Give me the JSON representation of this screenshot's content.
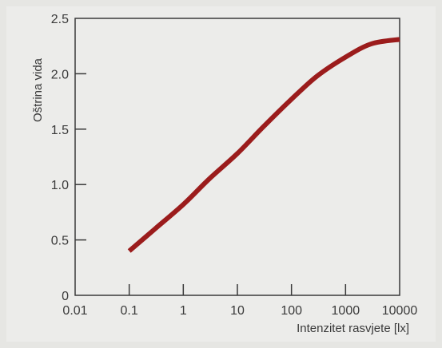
{
  "chart_data": {
    "type": "line",
    "title": "",
    "xlabel": "Intenzitet rasvjete [lx]",
    "ylabel": "Oštrina vida",
    "xscale": "log",
    "xlim": [
      0.01,
      10000
    ],
    "ylim": [
      0,
      2.5
    ],
    "xticks": [
      "0.01",
      "0.1",
      "1",
      "10",
      "100",
      "1000",
      "10000"
    ],
    "yticks": [
      "0",
      "0.5",
      "1.0",
      "1.5",
      "2.0",
      "2.5"
    ],
    "grid": false,
    "legend": "none",
    "series": [
      {
        "name": "",
        "color": "#9b1c1c",
        "x": [
          0.1,
          0.3,
          1,
          3,
          10,
          30,
          100,
          300,
          1000,
          3000,
          10000
        ],
        "y": [
          0.4,
          0.6,
          0.82,
          1.05,
          1.28,
          1.52,
          1.77,
          1.98,
          2.15,
          2.27,
          2.31
        ]
      }
    ]
  }
}
